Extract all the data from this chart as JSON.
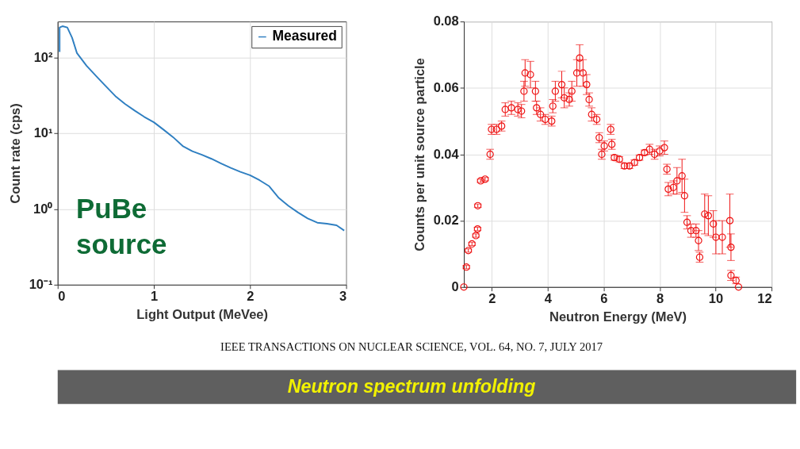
{
  "chart_data": [
    {
      "type": "line",
      "xlabel": "Light Output (MeVee)",
      "ylabel": "Count rate (cps)",
      "log": "y",
      "grid": true,
      "legend": "top right",
      "xlim": [
        0,
        3
      ],
      "xticks": [
        0,
        1,
        2,
        3
      ],
      "ylim": [
        0.1,
        300
      ],
      "yticks": [
        {
          "value": 0.1,
          "label": "10⁻¹"
        },
        {
          "value": 1,
          "label": "10⁰"
        },
        {
          "value": 10,
          "label": "10¹"
        },
        {
          "value": 100,
          "label": "10²"
        }
      ],
      "annotations": [
        "PuBe source"
      ],
      "series": [
        {
          "name": "Measured",
          "color": "#2f7fc1",
          "x": [
            0.02,
            0.02,
            0.05,
            0.1,
            0.15,
            0.2,
            0.3,
            0.4,
            0.5,
            0.6,
            0.7,
            0.8,
            0.9,
            1.0,
            1.1,
            1.2,
            1.3,
            1.4,
            1.5,
            1.6,
            1.7,
            1.8,
            1.9,
            2.0,
            2.1,
            2.2,
            2.3,
            2.4,
            2.5,
            2.6,
            2.7,
            2.8,
            2.9,
            2.98
          ],
          "values": [
            119,
            250,
            260,
            250,
            183,
            115,
            78,
            57,
            42,
            31,
            24.5,
            20,
            16.5,
            14,
            11.2,
            8.9,
            6.8,
            5.8,
            5.2,
            4.6,
            4.0,
            3.5,
            3.1,
            2.8,
            2.4,
            2.0,
            1.4,
            1.1,
            0.9,
            0.75,
            0.66,
            0.64,
            0.61,
            0.52
          ]
        }
      ]
    },
    {
      "type": "scatter",
      "xlabel": "Neutron Energy (MeV)",
      "ylabel": "Counts per unit source particle",
      "grid": true,
      "marker": "circle",
      "xlim": [
        1,
        12
      ],
      "xticks": [
        2,
        4,
        6,
        8,
        10,
        12
      ],
      "ylim": [
        0,
        0.08
      ],
      "yticks": [
        0,
        0.02,
        0.04,
        0.06,
        0.08
      ],
      "annotations": [
        "IEEE TRANSACTIONS ON NUCLEAR SCIENCE, VOL. 64, NO. 7, JULY 2017",
        "Neutron spectrum unfolding"
      ],
      "series": [
        {
          "color": "#ee1111",
          "x": [
            1.0,
            1.09,
            1.16,
            1.29,
            1.43,
            1.49,
            1.5,
            1.6,
            1.76,
            1.94,
            1.99,
            2.17,
            2.35,
            2.48,
            2.7,
            2.93,
            3.06,
            3.15,
            3.19,
            3.38,
            3.56,
            3.6,
            3.74,
            3.91,
            4.14,
            4.18,
            4.27,
            4.5,
            4.59,
            4.77,
            4.86,
            5.04,
            5.14,
            5.26,
            5.39,
            5.48,
            5.57,
            5.75,
            5.84,
            5.93,
            6.02,
            6.25,
            6.29,
            6.38,
            6.56,
            6.74,
            6.92,
            7.1,
            7.28,
            7.46,
            7.64,
            7.82,
            8.0,
            8.17,
            8.26,
            8.31,
            8.49,
            8.62,
            8.8,
            8.89,
            8.98,
            9.12,
            9.3,
            9.39,
            9.43,
            9.61,
            9.74,
            9.92,
            10.01,
            10.24,
            10.51,
            10.55,
            10.55,
            10.73,
            10.82
          ],
          "values": [
            0,
            0.006,
            0.011,
            0.013,
            0.0155,
            0.0175,
            0.0245,
            0.032,
            0.0325,
            0.04,
            0.0475,
            0.0475,
            0.0485,
            0.0535,
            0.054,
            0.0535,
            0.053,
            0.059,
            0.0645,
            0.064,
            0.059,
            0.054,
            0.052,
            0.0505,
            0.05,
            0.0545,
            0.059,
            0.061,
            0.057,
            0.0565,
            0.059,
            0.0645,
            0.069,
            0.0645,
            0.061,
            0.0565,
            0.052,
            0.0505,
            0.045,
            0.04,
            0.0425,
            0.0475,
            0.043,
            0.039,
            0.0385,
            0.0365,
            0.0365,
            0.0375,
            0.039,
            0.0405,
            0.0415,
            0.04,
            0.041,
            0.042,
            0.0355,
            0.0295,
            0.03,
            0.032,
            0.0335,
            0.0275,
            0.0195,
            0.017,
            0.017,
            0.014,
            0.009,
            0.022,
            0.0215,
            0.019,
            0.015,
            0.015,
            0.02,
            0.012,
            0.0035,
            0.002,
            0
          ],
          "errors": [
            null,
            0.0005,
            0.0005,
            0.0005,
            0.0005,
            0.0005,
            0.0005,
            0.0005,
            0.0005,
            0.0015,
            0.0015,
            0.0015,
            0.0015,
            0.002,
            0.002,
            0.002,
            0.002,
            0.003,
            0.004,
            0.004,
            0.003,
            0.002,
            0.002,
            0.0015,
            0.0015,
            0.002,
            0.003,
            0.004,
            0.003,
            0.002,
            0.003,
            0.004,
            0.004,
            0.004,
            0.003,
            0.002,
            0.002,
            0.0015,
            0.0015,
            0.0015,
            0.0015,
            0.0015,
            0.0015,
            0.0008,
            0.0008,
            0.0008,
            0.0008,
            0.0008,
            0.0008,
            0.0008,
            0.0015,
            0.0015,
            0.0015,
            0.002,
            0.0015,
            0.002,
            0.002,
            0.004,
            0.005,
            0.005,
            0.002,
            0.002,
            0.002,
            0.003,
            0.0015,
            0.006,
            0.006,
            0.004,
            0.005,
            0.005,
            0.008,
            0.004,
            0.0015,
            0.001,
            null
          ]
        }
      ]
    }
  ]
}
